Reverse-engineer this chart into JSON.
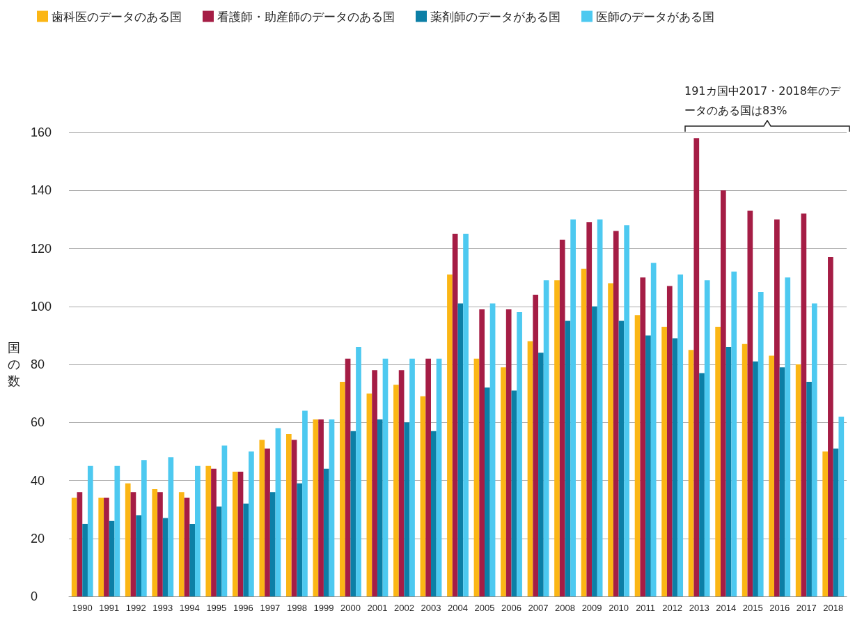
{
  "chart_data": {
    "type": "bar",
    "ylabel": "国の数",
    "categories": [
      "1990",
      "1991",
      "1992",
      "1993",
      "1994",
      "1995",
      "1996",
      "1997",
      "1998",
      "1999",
      "2000",
      "2001",
      "2002",
      "2003",
      "2004",
      "2005",
      "2006",
      "2007",
      "2008",
      "2009",
      "2010",
      "2011",
      "2012",
      "2013",
      "2014",
      "2015",
      "2016",
      "2017",
      "2018"
    ],
    "series": [
      {
        "name": "歯科医のデータのある国",
        "color": "#fbb615",
        "values": [
          34,
          34,
          39,
          37,
          36,
          45,
          43,
          54,
          56,
          61,
          74,
          70,
          73,
          69,
          111,
          82,
          79,
          88,
          109,
          113,
          108,
          97,
          93,
          85,
          93,
          87,
          83,
          80,
          50
        ]
      },
      {
        "name": "看護師・助産師のデータのある国",
        "color": "#a51d45",
        "values": [
          36,
          34,
          36,
          36,
          34,
          44,
          43,
          51,
          54,
          61,
          82,
          78,
          78,
          82,
          125,
          99,
          99,
          104,
          123,
          129,
          126,
          110,
          107,
          158,
          140,
          133,
          130,
          132,
          117
        ]
      },
      {
        "name": "薬剤師のデータがある国",
        "color": "#0c7fa6",
        "values": [
          25,
          26,
          28,
          27,
          25,
          31,
          32,
          36,
          39,
          44,
          57,
          61,
          60,
          57,
          101,
          72,
          71,
          84,
          95,
          100,
          95,
          90,
          89,
          77,
          86,
          81,
          79,
          74,
          51
        ]
      },
      {
        "name": "医師のデータがある国",
        "color": "#4dc9f0",
        "values": [
          45,
          45,
          47,
          48,
          45,
          52,
          50,
          58,
          64,
          61,
          86,
          82,
          82,
          82,
          125,
          101,
          98,
          109,
          130,
          130,
          128,
          115,
          111,
          109,
          112,
          105,
          110,
          101,
          62
        ]
      }
    ],
    "ylim": [
      0,
      160
    ],
    "yticks": [
      0,
      20,
      40,
      60,
      80,
      100,
      120,
      140,
      160
    ],
    "grid": "y",
    "legend": "top left",
    "annotations": [
      "191カ国中2017・2018年のデータのある国は83%"
    ]
  }
}
